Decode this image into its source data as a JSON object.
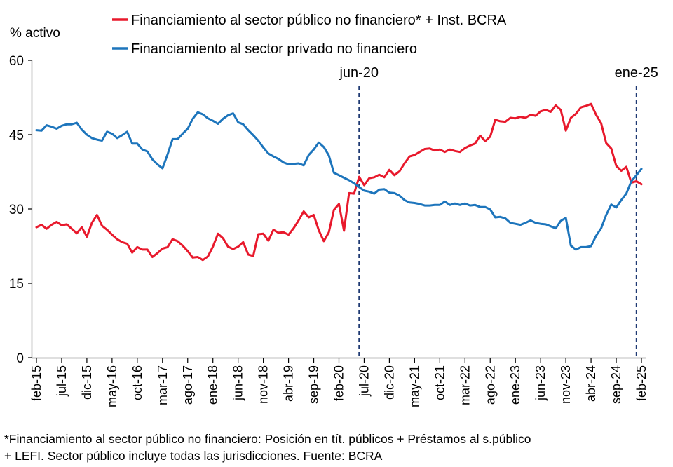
{
  "chart_data": {
    "type": "line",
    "ylabel": "% activo",
    "ylim": [
      0,
      60
    ],
    "yticks": [
      0,
      15,
      30,
      45,
      60
    ],
    "x_tick_labels": [
      "feb-15",
      "jul-15",
      "dic-15",
      "may-16",
      "oct-16",
      "mar-17",
      "ago-17",
      "ene-18",
      "jun-18",
      "nov-18",
      "abr-19",
      "sep-19",
      "feb-20",
      "jul-20",
      "dic-20",
      "may-21",
      "oct-21",
      "mar-22",
      "ago-22",
      "ene-23",
      "jun-23",
      "nov-23",
      "abr-24",
      "sep-24",
      "feb-25"
    ],
    "x_start": "2015-02",
    "x_end": "2025-02",
    "grid": false,
    "legend_position": "top",
    "series": [
      {
        "name": "Financiamiento al sector público no financiero* + Inst. BCRA",
        "color": "#e8192c",
        "values": [
          26.3,
          26.8,
          26.0,
          26.8,
          27.4,
          26.7,
          26.9,
          26.0,
          25.1,
          26.3,
          24.4,
          27.2,
          28.8,
          26.6,
          25.8,
          24.8,
          23.9,
          23.3,
          23.0,
          21.2,
          22.3,
          21.8,
          21.8,
          20.3,
          21.1,
          22.0,
          22.3,
          23.9,
          23.5,
          22.6,
          21.5,
          20.2,
          20.3,
          19.7,
          20.4,
          22.4,
          25.0,
          24.1,
          22.4,
          21.9,
          22.4,
          23.3,
          20.8,
          20.5,
          24.9,
          25.0,
          23.6,
          25.8,
          25.2,
          25.3,
          24.8,
          26.1,
          27.7,
          29.5,
          28.3,
          28.8,
          25.7,
          23.5,
          25.3,
          29.8,
          31.0,
          25.6,
          33.2,
          33.1,
          36.5,
          34.8,
          36.2,
          36.4,
          36.9,
          36.4,
          37.9,
          36.8,
          37.6,
          39.2,
          40.6,
          40.9,
          41.5,
          42.1,
          42.2,
          41.8,
          42.0,
          41.5,
          42.0,
          41.7,
          41.5,
          42.3,
          42.8,
          43.2,
          44.8,
          43.7,
          44.6,
          48.0,
          47.7,
          47.6,
          48.4,
          48.3,
          48.6,
          48.4,
          49.0,
          48.8,
          49.7,
          50.0,
          49.6,
          50.9,
          50.0,
          45.8,
          48.4,
          49.2,
          50.5,
          50.8,
          51.2,
          49.0,
          47.3,
          43.3,
          42.2,
          38.7,
          37.7,
          38.5,
          35.3,
          35.6,
          35.0
        ]
      },
      {
        "name": "Financiamiento al sector privado no financiero",
        "color": "#1d75bc",
        "values": [
          45.9,
          45.8,
          46.9,
          46.6,
          46.2,
          46.8,
          47.1,
          47.1,
          47.4,
          46.0,
          45.0,
          44.3,
          44.0,
          43.8,
          45.6,
          45.2,
          44.3,
          44.9,
          45.6,
          43.2,
          43.2,
          42.0,
          41.6,
          40.0,
          39.0,
          38.2,
          41.0,
          44.1,
          44.1,
          45.2,
          46.2,
          48.2,
          49.5,
          49.1,
          48.3,
          47.8,
          47.2,
          48.2,
          48.9,
          49.3,
          47.5,
          47.1,
          45.9,
          44.9,
          43.8,
          42.4,
          41.2,
          40.6,
          40.1,
          39.4,
          39.0,
          39.1,
          39.2,
          38.8,
          40.9,
          42.0,
          43.4,
          42.5,
          40.8,
          37.3,
          36.8,
          36.3,
          35.8,
          35.2,
          34.4,
          33.7,
          33.5,
          33.1,
          33.9,
          34.0,
          33.3,
          33.2,
          32.7,
          31.8,
          31.3,
          31.2,
          31.0,
          30.7,
          30.7,
          30.8,
          30.8,
          31.5,
          30.8,
          31.1,
          30.8,
          31.1,
          30.7,
          30.8,
          30.4,
          30.4,
          29.9,
          28.3,
          28.4,
          28.1,
          27.2,
          27.0,
          26.8,
          27.2,
          27.7,
          27.2,
          27.0,
          26.9,
          26.5,
          26.1,
          27.6,
          28.2,
          22.6,
          21.8,
          22.3,
          22.3,
          22.5,
          24.6,
          26.1,
          28.8,
          30.9,
          30.3,
          31.8,
          33.1,
          35.6,
          36.8,
          38.1
        ]
      }
    ],
    "annotations": [
      {
        "label": "jun-20",
        "index": 64
      },
      {
        "label": "ene-25",
        "index": 119
      }
    ]
  },
  "footnote": {
    "line1": "*Financiamiento al sector público no financiero: Posición en tít. públicos + Préstamos al s.público",
    "line2": "+ LEFI. Sector público incluye todas las jurisdicciones. Fuente: BCRA"
  }
}
